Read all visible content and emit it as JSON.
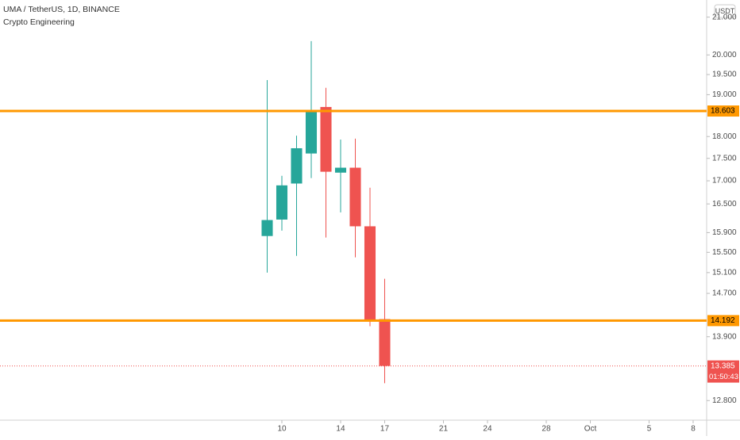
{
  "chart_data": {
    "type": "candlestick",
    "title": "UMA / TetherUS, 1D, BINANCE",
    "subtitle": "Crypto Engineering",
    "currency": "USDT",
    "x": [
      9,
      10,
      11,
      12,
      13,
      14,
      15,
      16,
      17
    ],
    "open": [
      15.83,
      16.17,
      16.94,
      17.61,
      18.7,
      17.18,
      17.29,
      16.03,
      14.22
    ],
    "high": [
      19.36,
      17.11,
      18.02,
      20.36,
      19.17,
      17.93,
      17.95,
      16.85,
      14.98
    ],
    "low": [
      15.1,
      15.94,
      15.43,
      17.06,
      15.8,
      16.32,
      15.4,
      14.09,
      13.09
    ],
    "close": [
      16.16,
      16.9,
      17.73,
      18.59,
      17.2,
      17.29,
      16.03,
      14.19,
      13.385
    ],
    "up_color": "#26a69a",
    "down_color": "#ef5350",
    "log_scale": true,
    "ylim": [
      12.48,
      21.47
    ],
    "yticks": [
      {
        "value": 21,
        "label": "21.000"
      },
      {
        "value": 20,
        "label": "20.000"
      },
      {
        "value": 19.5,
        "label": "19.500"
      },
      {
        "value": 19,
        "label": "19.000"
      },
      {
        "value": 18,
        "label": "18.000"
      },
      {
        "value": 17.5,
        "label": "17.500"
      },
      {
        "value": 17,
        "label": "17.000"
      },
      {
        "value": 16.5,
        "label": "16.500"
      },
      {
        "value": 15.9,
        "label": "15.900"
      },
      {
        "value": 15.5,
        "label": "15.500"
      },
      {
        "value": 15.1,
        "label": "15.100"
      },
      {
        "value": 14.7,
        "label": "14.700"
      },
      {
        "value": 13.9,
        "label": "13.900"
      },
      {
        "value": 12.8,
        "label": "12.800"
      }
    ],
    "xlim": [
      -9.19,
      38.92
    ],
    "xticks": [
      10,
      14,
      17,
      21,
      24,
      28,
      {
        "value": 31,
        "label": "Oct"
      },
      {
        "value": 35,
        "label": "5"
      },
      {
        "value": 38,
        "label": "8"
      }
    ],
    "horizontal_lines": [
      18.603,
      14.192
    ],
    "line_color": "#ff9800",
    "last_price": 13.385,
    "countdown": "01:50:43"
  }
}
